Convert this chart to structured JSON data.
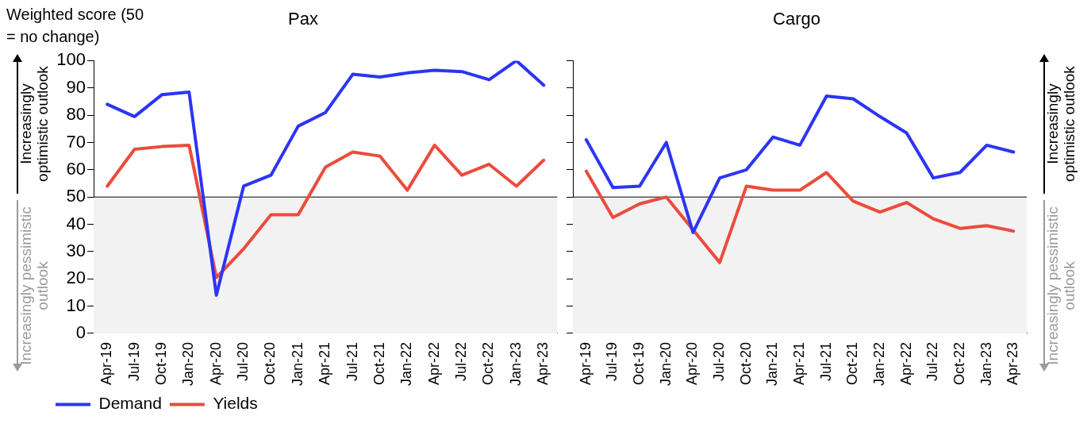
{
  "chart_data": [
    {
      "type": "line",
      "title": "Pax",
      "ylabel": "Weighted score (50 = no change)",
      "categories": [
        "Apr-19",
        "Jul-19",
        "Oct-19",
        "Jan-20",
        "Apr-20",
        "Jul-20",
        "Oct-20",
        "Jan-21",
        "Apr-21",
        "Jul-21",
        "Oct-21",
        "Jan-22",
        "Apr-22",
        "Jul-22",
        "Oct-22",
        "Jan-23",
        "Apr-23"
      ],
      "series": [
        {
          "name": "Demand",
          "color": "#2b35f5",
          "values": [
            84,
            79.5,
            87.5,
            88.5,
            14,
            54,
            58,
            76,
            81,
            95,
            94,
            95.5,
            96.5,
            96,
            93,
            100,
            91
          ]
        },
        {
          "name": "Yields",
          "color": "#ec4b3c",
          "values": [
            54,
            67.5,
            68.5,
            69,
            20.5,
            31,
            43.5,
            43.5,
            61,
            66.5,
            65,
            52.5,
            69,
            58,
            62,
            54,
            63.5
          ]
        }
      ],
      "ylim": [
        0,
        100
      ],
      "yticks": [
        0,
        10,
        20,
        30,
        40,
        50,
        60,
        70,
        80,
        90,
        100
      ],
      "grid": false,
      "legend": "bottom left",
      "bands": [
        {
          "axis": "y",
          "from": 0,
          "to": 50,
          "color": "#f2f2f2"
        }
      ],
      "ref_lines": [
        {
          "axis": "y",
          "value": 50,
          "color": "#000000"
        }
      ],
      "annotations": [
        "Increasingly optimistic outlook",
        "Increasingly pessimistic outlook"
      ]
    },
    {
      "type": "line",
      "title": "Cargo",
      "categories": [
        "Apr-19",
        "Jul-19",
        "Oct-19",
        "Jan-20",
        "Apr-20",
        "Jul-20",
        "Oct-20",
        "Jan-21",
        "Apr-21",
        "Jul-21",
        "Oct-21",
        "Jan-22",
        "Apr-22",
        "Jul-22",
        "Oct-22",
        "Jan-23",
        "Apr-23"
      ],
      "series": [
        {
          "color": "#2b35f5",
          "values": [
            71,
            53.5,
            54,
            70,
            37,
            57,
            60,
            72,
            69,
            87,
            86,
            79.5,
            73.5,
            57,
            59,
            69,
            66.5
          ]
        },
        {
          "color": "#ec4b3c",
          "values": [
            59.5,
            42.5,
            47.5,
            50,
            38,
            26,
            54,
            52.5,
            52.5,
            59,
            48.5,
            44.5,
            48,
            42,
            38.5,
            39.5,
            37.5
          ]
        }
      ],
      "ylim": [
        0,
        100
      ],
      "yticks": [
        0,
        10,
        20,
        30,
        40,
        50,
        60,
        70,
        80,
        90,
        100
      ],
      "grid": false,
      "legend": false,
      "tick_labels": "x",
      "bands": [
        {
          "axis": "y",
          "from": 0,
          "to": 50,
          "color": "#f2f2f2"
        }
      ],
      "ref_lines": [
        {
          "axis": "y",
          "value": 50,
          "color": "#000000"
        }
      ],
      "annotations": [
        "Increasingly optimistic outlook",
        "Increasingly pessimistic outlook"
      ]
    }
  ]
}
